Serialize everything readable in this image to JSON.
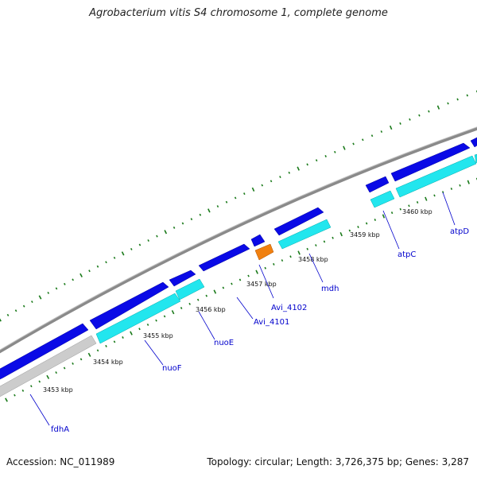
{
  "title": "Agrobacterium vitis S4 chromosome 1, complete genome",
  "footer": {
    "accession": "Accession: NC_011989",
    "summary": "Topology: circular; Length: 3,726,375 bp; Genes: 3,287"
  },
  "scale": {
    "ticks": [
      "3453 kbp",
      "3454 kbp",
      "3455 kbp",
      "3456 kbp",
      "3457 kbp",
      "3458 kbp",
      "3459 kbp",
      "3460 kbp"
    ]
  },
  "gene_labels": [
    "fdhA",
    "nuoF",
    "nuoE",
    "Avi_4101",
    "Avi_4102",
    "mdh",
    "atpC",
    "atpD"
  ],
  "colors": {
    "cds": "#0a0ae6",
    "gene": "#22e6ee",
    "pseudo": "#c8c8c8",
    "rna": "#f08010",
    "backbone": "#888888",
    "tick": "#1a7a1a",
    "label": "#0000cc"
  }
}
